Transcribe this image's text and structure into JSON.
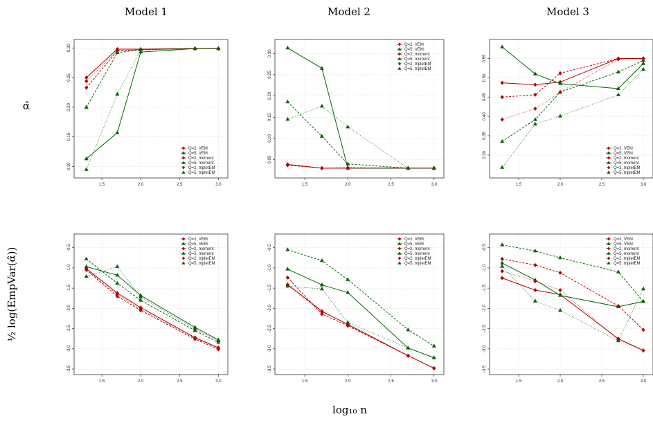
{
  "colors": {
    "red": "#b30000",
    "green": "#006400"
  },
  "column_titles": [
    "Model 1",
    "Model 2",
    "Model 3"
  ],
  "row_labels": [
    "α̂",
    "½ log(EmpVar(α̂))"
  ],
  "xlabel": "log₁₀ n",
  "chart_data": [
    {
      "type": "line",
      "title": "Model 1",
      "ylabel": "α̂",
      "x": [
        1.301,
        1.699,
        2.0,
        2.699,
        3.0
      ],
      "xticks": [
        "1.5",
        "2.0",
        "2.5",
        "3.0"
      ],
      "yticks": [
        "0.10",
        "0.15",
        "0.20",
        "0.25",
        "0.30"
      ],
      "xlim": [
        1.25,
        3.05
      ],
      "ylim": [
        0.09,
        0.305
      ],
      "legend_position": "bottom-right",
      "series": [
        {
          "name": "Q=2, VEM",
          "values": [
            0.25,
            0.298,
            0.298,
            0.299,
            0.299
          ]
        },
        {
          "name": "Q=5, VEM",
          "values": [
            0.113,
            0.157,
            0.293,
            0.299,
            0.299
          ]
        },
        {
          "name": "Q=2, moment",
          "values": [
            0.233,
            0.295,
            0.297,
            0.299,
            0.299
          ]
        },
        {
          "name": "Q=5, moment",
          "values": [
            0.2,
            0.292,
            0.297,
            0.299,
            0.299
          ]
        },
        {
          "name": "Q=2, tripletEM",
          "values": [
            0.244,
            0.296,
            0.297,
            0.299,
            0.299
          ]
        },
        {
          "name": "Q=5, tripletEM",
          "values": [
            0.095,
            0.222,
            0.297,
            0.299,
            0.299
          ]
        }
      ]
    },
    {
      "type": "line",
      "title": "Model 2",
      "ylabel": "α̂",
      "x": [
        1.301,
        1.699,
        2.0,
        2.699,
        3.0
      ],
      "xticks": [
        "1.5",
        "2.0",
        "2.5",
        "3.0"
      ],
      "yticks": [
        "0.05",
        "0.10",
        "0.15",
        "0.20",
        "0.25",
        "0.30"
      ],
      "xlim": [
        1.25,
        3.05
      ],
      "ylim": [
        0.02,
        0.32
      ],
      "legend_position": "top-right",
      "series": [
        {
          "name": "Q=2, VEM",
          "values": [
            0.039,
            0.03,
            0.03,
            0.03,
            0.03
          ]
        },
        {
          "name": "Q=5, VEM",
          "values": [
            0.313,
            0.265,
            0.03,
            0.03,
            0.03
          ]
        },
        {
          "name": "Q=2, moment",
          "values": [
            0.037,
            0.03,
            0.031,
            0.03,
            0.03
          ]
        },
        {
          "name": "Q=5, moment",
          "values": [
            0.186,
            0.105,
            0.04,
            0.03,
            0.03
          ]
        },
        {
          "name": "Q=2, tripletEM",
          "values": [
            0.038,
            0.03,
            0.03,
            0.03,
            0.03
          ]
        },
        {
          "name": "Q=5, tripletEM",
          "values": [
            0.145,
            0.176,
            0.127,
            0.03,
            0.03
          ]
        }
      ]
    },
    {
      "type": "line",
      "title": "Model 3",
      "ylabel": "α̂",
      "x": [
        1.301,
        1.699,
        2.0,
        2.699,
        3.0
      ],
      "xticks": [
        "1.5",
        "2.0",
        "2.5",
        "3.0"
      ],
      "yticks": [
        "0.30",
        "0.35",
        "0.40",
        "0.45",
        "0.50",
        "0.55"
      ],
      "xlim": [
        1.25,
        3.05
      ],
      "ylim": [
        0.255,
        0.585
      ],
      "legend_position": "bottom-right",
      "series": [
        {
          "name": "Q=2, VEM",
          "values": [
            0.487,
            0.482,
            0.489,
            0.55,
            0.55
          ]
        },
        {
          "name": "Q=5, VEM",
          "values": [
            0.58,
            0.51,
            0.485,
            0.472,
            0.537
          ]
        },
        {
          "name": "Q=2, moment",
          "values": [
            0.45,
            0.456,
            0.512,
            0.55,
            0.55
          ]
        },
        {
          "name": "Q=5, moment",
          "values": [
            0.335,
            0.392,
            0.463,
            0.515,
            0.545
          ]
        },
        {
          "name": "Q=2, tripletEM",
          "values": [
            0.392,
            0.42,
            0.463,
            0.548,
            0.55
          ]
        },
        {
          "name": "Q=5, tripletEM",
          "values": [
            0.268,
            0.38,
            0.401,
            0.456,
            0.522
          ]
        }
      ]
    },
    {
      "type": "line",
      "title": "",
      "ylabel": "½ log(EmpVar(α̂))",
      "x": [
        1.301,
        1.699,
        2.0,
        2.699,
        3.0
      ],
      "xticks": [
        "1.5",
        "2.0",
        "2.5",
        "3.0"
      ],
      "yticks": [
        "-3.5",
        "-3.0",
        "-2.5",
        "-2.0",
        "-1.5",
        "-1.0",
        "-0.5"
      ],
      "xlim": [
        1.25,
        3.05
      ],
      "ylim": [
        -3.5,
        -0.3
      ],
      "legend_position": "top-right",
      "series": [
        {
          "name": "Q=2, VEM",
          "values": [
            -1.02,
            -1.62,
            -1.98,
            -2.72,
            -2.97
          ]
        },
        {
          "name": "Q=5, VEM",
          "values": [
            -0.97,
            -1.18,
            -1.68,
            -2.47,
            -2.78
          ]
        },
        {
          "name": "Q=2, moment",
          "values": [
            -1.05,
            -1.7,
            -2.05,
            -2.76,
            -3.01
          ]
        },
        {
          "name": "Q=5, moment",
          "values": [
            -0.78,
            -1.38,
            -1.8,
            -2.55,
            -2.84
          ]
        },
        {
          "name": "Q=2, tripletEM",
          "values": [
            -1.04,
            -1.65,
            -2.02,
            -2.74,
            -2.99
          ]
        },
        {
          "name": "Q=5, tripletEM",
          "values": [
            -1.21,
            -0.97,
            -1.72,
            -2.51,
            -2.8
          ]
        }
      ]
    },
    {
      "type": "line",
      "title": "",
      "ylabel": "½ log(EmpVar(α̂))",
      "x": [
        1.301,
        1.699,
        2.0,
        2.699,
        3.0
      ],
      "xticks": [
        "1.5",
        "2.0",
        "2.5",
        "3.0"
      ],
      "yticks": [
        "-3.5",
        "-3.0",
        "-2.5",
        "-2.0",
        "-1.5",
        "-1.0",
        "-0.5"
      ],
      "xlim": [
        1.25,
        3.05
      ],
      "ylim": [
        -3.5,
        -0.3
      ],
      "legend_position": "top-right",
      "series": [
        {
          "name": "Q=2, VEM",
          "values": [
            -1.41,
            -2.07,
            -2.4,
            -3.17,
            -3.48
          ]
        },
        {
          "name": "Q=5, VEM",
          "values": [
            -1.03,
            -1.42,
            -1.61,
            -2.98,
            -3.22
          ]
        },
        {
          "name": "Q=2, moment",
          "values": [
            -1.24,
            -2.14,
            -2.43,
            -3.17,
            -3.48
          ]
        },
        {
          "name": "Q=5, moment",
          "values": [
            -0.55,
            -0.82,
            -1.29,
            -2.53,
            -2.93
          ]
        },
        {
          "name": "Q=2, tripletEM",
          "values": [
            -1.44,
            -2.09,
            -2.38,
            -3.17,
            -3.48
          ]
        },
        {
          "name": "Q=5, tripletEM",
          "values": [
            -1.45,
            -1.52,
            -2.35,
            -2.98,
            -3.22
          ]
        }
      ]
    },
    {
      "type": "line",
      "title": "",
      "ylabel": "½ log(EmpVar(α̂))",
      "x": [
        1.301,
        1.699,
        2.0,
        2.699,
        3.0
      ],
      "xticks": [
        "1.5",
        "2.0",
        "2.5",
        "3.0"
      ],
      "yticks": [
        "-3.5",
        "-3.0",
        "-2.5",
        "-2.0",
        "-1.5",
        "-1.0",
        "-0.5"
      ],
      "xlim": [
        1.25,
        3.05
      ],
      "ylim": [
        -3.5,
        -0.3
      ],
      "legend_position": "top-right",
      "series": [
        {
          "name": "Q=2, VEM",
          "values": [
            -1.25,
            -1.55,
            -1.66,
            -2.75,
            -3.04
          ]
        },
        {
          "name": "Q=5, VEM",
          "values": [
            -0.88,
            -1.3,
            -1.68,
            -1.96,
            -1.83
          ]
        },
        {
          "name": "Q=2, moment",
          "values": [
            -0.78,
            -0.93,
            -1.12,
            -1.94,
            -2.53
          ]
        },
        {
          "name": "Q=5, moment",
          "values": [
            -0.43,
            -0.58,
            -0.75,
            -1.1,
            -1.83
          ]
        },
        {
          "name": "Q=2, tripletEM",
          "values": [
            -1.08,
            -1.33,
            -1.55,
            -2.78,
            -3.04
          ]
        },
        {
          "name": "Q=5, tripletEM",
          "values": [
            -0.96,
            -1.82,
            -2.05,
            -2.8,
            -1.52
          ]
        }
      ]
    }
  ]
}
